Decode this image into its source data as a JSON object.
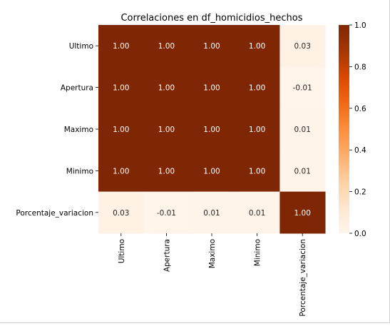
{
  "chart_data": {
    "type": "heatmap",
    "title": "Correlaciones en df_homicidios_hechos",
    "rows": [
      "Ultimo",
      "Apertura",
      "Maximo",
      "Minimo",
      "Porcentaje_variacion"
    ],
    "columns": [
      "Ultimo",
      "Apertura",
      "Maximo",
      "Minimo",
      "Porcentaje_variacion"
    ],
    "values": [
      [
        1.0,
        1.0,
        1.0,
        1.0,
        0.03
      ],
      [
        1.0,
        1.0,
        1.0,
        1.0,
        -0.01
      ],
      [
        1.0,
        1.0,
        1.0,
        1.0,
        0.01
      ],
      [
        1.0,
        1.0,
        1.0,
        1.0,
        0.01
      ],
      [
        0.03,
        -0.01,
        0.01,
        0.01,
        1.0
      ]
    ],
    "cell_labels": [
      [
        "1.00",
        "1.00",
        "1.00",
        "1.00",
        "0.03"
      ],
      [
        "1.00",
        "1.00",
        "1.00",
        "1.00",
        "-0.01"
      ],
      [
        "1.00",
        "1.00",
        "1.00",
        "1.00",
        "0.01"
      ],
      [
        "1.00",
        "1.00",
        "1.00",
        "1.00",
        "0.01"
      ],
      [
        "0.03",
        "-0.01",
        "0.01",
        "0.01",
        "1.00"
      ]
    ],
    "colormap": "Oranges",
    "colorbar": {
      "range": [
        0.0,
        1.0
      ],
      "ticks": [
        0.0,
        0.2,
        0.4,
        0.6,
        0.8,
        1.0
      ],
      "tick_labels": [
        "0.0",
        "0.2",
        "0.4",
        "0.6",
        "0.8",
        "1.0"
      ]
    },
    "colors": {
      "low": "#fff5eb",
      "high": "#7f2704",
      "label_on_dark": "#ffffff",
      "label_on_light": "#262626"
    }
  }
}
